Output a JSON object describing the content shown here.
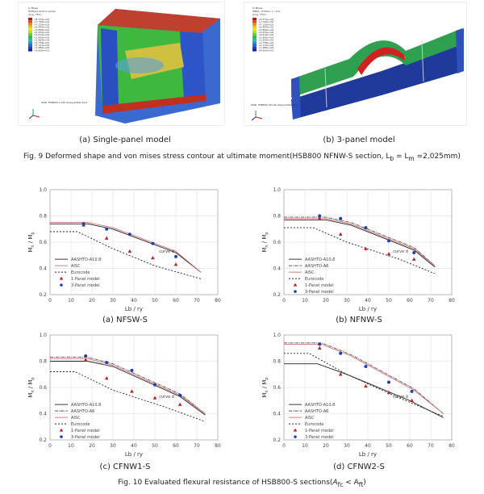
{
  "fig9": {
    "panel_a_caption": "(a) Single-panel model",
    "panel_b_caption": "(b) 3-panel model",
    "caption": "Fig. 9 Deformed shape and von mises stress contour at ultimate moment(HSB800 NFNW-S section, L",
    "caption_eq": " = L",
    "caption_end": " =2,025mm)",
    "sub_b": "b",
    "sub_m": "m",
    "legend_a_title": "S, Mises",
    "legend_a_sub": "Multiple section points",
    "legend_a_sub2": "(Avg: 75%)",
    "legend_b_title": "S, Mises",
    "legend_b_sub": "SNEG, (fraction = -1.0)",
    "legend_b_sub2": "(Avg: 75%)",
    "legend_values": [
      "+8.372e+02",
      "+7.746e+02",
      "+7.120e+02",
      "+6.494e+02",
      "+5.868e+02",
      "+5.242e+02",
      "+4.616e+02",
      "+3.990e+02",
      "+3.364e+02",
      "+2.738e+02",
      "+2.112e+02",
      "+1.486e+02",
      "+8.600e+01"
    ],
    "legend_colors": [
      "#d01010",
      "#e84a10",
      "#f08a10",
      "#f0c010",
      "#e8e810",
      "#b0e020",
      "#60d030",
      "#20c050",
      "#20c0a0",
      "#20a0d0",
      "#2070e0",
      "#2040d0",
      "#1020b0"
    ]
  },
  "fig10": {
    "caption": "Fig. 10 Evaluated flexural resistance of HSB800-S sections(",
    "caption_math": "A",
    "sub_fc": "fc",
    "lt": " < A",
    "sub_ft": "ft",
    "caption_close": ")",
    "y_axis_label": "M",
    "y_axis_sub_n": "n",
    "y_axis_slash": " / M",
    "y_axis_sub_p": "p",
    "x_axis_label": "Lb / ry",
    "x_ticks": [
      "0",
      "10",
      "20",
      "30",
      "40",
      "50",
      "60",
      "70",
      "80"
    ],
    "y_ticks": [
      "0.2",
      "0.4",
      "0.6",
      "0.8",
      "1.0"
    ],
    "curve_label": "curve d"
  },
  "chart_data": [
    {
      "type": "line",
      "panel": "(a) NFSW-S",
      "xlabel": "Lb / ry",
      "ylabel": "Mn / Mp",
      "xlim": [
        0,
        80
      ],
      "ylim": [
        0.2,
        1.0
      ],
      "legend": [
        "AASHTO-A10.8",
        "AISC",
        "Eurocode",
        "1-Panel model",
        "3-Panel model"
      ],
      "series": [
        {
          "name": "AASHTO-A10.8",
          "x": [
            0,
            18,
            30,
            60,
            72
          ],
          "y": [
            0.74,
            0.74,
            0.7,
            0.52,
            0.37
          ],
          "color": "#222222",
          "dash": ""
        },
        {
          "name": "AISC",
          "x": [
            0,
            18,
            30,
            60,
            72
          ],
          "y": [
            0.75,
            0.75,
            0.71,
            0.53,
            0.37
          ],
          "color": "#d07070",
          "dash": ""
        },
        {
          "name": "Eurocode",
          "x": [
            0,
            13,
            30,
            50,
            72
          ],
          "y": [
            0.68,
            0.68,
            0.55,
            0.42,
            0.32
          ],
          "color": "#222222",
          "dash": "2,2"
        }
      ],
      "points": [
        {
          "name": "1-Panel model",
          "x": [
            16,
            27,
            38,
            49,
            60
          ],
          "y": [
            0.73,
            0.63,
            0.53,
            0.48,
            0.43
          ],
          "color": "#c02020",
          "shape": "triangle"
        },
        {
          "name": "3-Panel model",
          "x": [
            16,
            27,
            38,
            49,
            60
          ],
          "y": [
            0.74,
            0.7,
            0.66,
            0.59,
            0.49
          ],
          "color": "#2040b0",
          "shape": "circle"
        }
      ]
    },
    {
      "type": "line",
      "panel": "(b) NFNW-S",
      "xlabel": "Lb / ry",
      "ylabel": "Mn / Mp",
      "xlim": [
        0,
        80
      ],
      "ylim": [
        0.2,
        1.0
      ],
      "legend": [
        "AASHTO-A10.8",
        "AASHTO-A6",
        "AISC",
        "Eurocode",
        "1-Panel model",
        "3-Panel model"
      ],
      "series": [
        {
          "name": "AASHTO-A10.8",
          "x": [
            0,
            20,
            32,
            62,
            72
          ],
          "y": [
            0.77,
            0.77,
            0.73,
            0.54,
            0.41
          ],
          "color": "#222222",
          "dash": ""
        },
        {
          "name": "AASHTO-A6",
          "x": [
            0,
            20,
            32,
            62,
            72
          ],
          "y": [
            0.79,
            0.79,
            0.75,
            0.56,
            0.42
          ],
          "color": "#555555",
          "dash": "4,1,1,1"
        },
        {
          "name": "AISC",
          "x": [
            0,
            20,
            32,
            62,
            72
          ],
          "y": [
            0.78,
            0.78,
            0.74,
            0.55,
            0.42
          ],
          "color": "#d07070",
          "dash": ""
        },
        {
          "name": "Eurocode",
          "x": [
            0,
            14,
            30,
            55,
            72
          ],
          "y": [
            0.71,
            0.71,
            0.6,
            0.47,
            0.36
          ],
          "color": "#222222",
          "dash": "2,2"
        }
      ],
      "points": [
        {
          "name": "1-Panel model",
          "x": [
            17,
            27,
            39,
            50,
            62
          ],
          "y": [
            0.78,
            0.66,
            0.55,
            0.51,
            0.47
          ],
          "color": "#c02020",
          "shape": "triangle"
        },
        {
          "name": "3-Panel model",
          "x": [
            17,
            27,
            39,
            50,
            62
          ],
          "y": [
            0.8,
            0.78,
            0.71,
            0.61,
            0.52
          ],
          "color": "#2040b0",
          "shape": "circle"
        }
      ]
    },
    {
      "type": "line",
      "panel": "(c) CFNW1-S",
      "xlabel": "Lb / ry",
      "ylabel": "Mn / Mp",
      "xlim": [
        0,
        80
      ],
      "ylim": [
        0.2,
        1.0
      ],
      "legend": [
        "AASHTO-A10.8",
        "AASHTO-A6",
        "AISC",
        "Eurocode",
        "1-Panel model",
        "3-Panel model"
      ],
      "series": [
        {
          "name": "AASHTO-A10.8",
          "x": [
            0,
            18,
            30,
            62,
            74
          ],
          "y": [
            0.8,
            0.8,
            0.76,
            0.53,
            0.39
          ],
          "color": "#222222",
          "dash": ""
        },
        {
          "name": "AASHTO-A6",
          "x": [
            0,
            18,
            30,
            62,
            74
          ],
          "y": [
            0.83,
            0.83,
            0.78,
            0.55,
            0.4
          ],
          "color": "#555555",
          "dash": "4,1,1,1"
        },
        {
          "name": "AISC",
          "x": [
            0,
            18,
            30,
            62,
            74
          ],
          "y": [
            0.82,
            0.82,
            0.77,
            0.54,
            0.4
          ],
          "color": "#d07070",
          "dash": ""
        },
        {
          "name": "Eurocode",
          "x": [
            0,
            12,
            30,
            55,
            74
          ],
          "y": [
            0.72,
            0.72,
            0.58,
            0.45,
            0.34
          ],
          "color": "#222222",
          "dash": "2,2"
        }
      ],
      "points": [
        {
          "name": "1-Panel model",
          "x": [
            17,
            27,
            39,
            50,
            62
          ],
          "y": [
            0.81,
            0.67,
            0.57,
            0.52,
            0.47
          ],
          "color": "#c02020",
          "shape": "triangle"
        },
        {
          "name": "3-Panel model",
          "x": [
            17,
            27,
            39,
            50,
            62
          ],
          "y": [
            0.84,
            0.79,
            0.73,
            0.62,
            0.54
          ],
          "color": "#2040b0",
          "shape": "circle"
        }
      ]
    },
    {
      "type": "line",
      "panel": "(d) CFNW2-S",
      "xlabel": "Lb / ry",
      "ylabel": "Mn / Mp",
      "xlim": [
        0,
        80
      ],
      "ylim": [
        0.2,
        1.0
      ],
      "legend": [
        "AASHTO-A10.8",
        "AASHTO-A6",
        "AISC",
        "Eurocode",
        "1-Panel model",
        "3-Panel model"
      ],
      "series": [
        {
          "name": "AASHTO-A10.8",
          "x": [
            0,
            16,
            30,
            60,
            76
          ],
          "y": [
            0.78,
            0.78,
            0.7,
            0.5,
            0.37
          ],
          "color": "#222222",
          "dash": ""
        },
        {
          "name": "AASHTO-A6",
          "x": [
            0,
            18,
            32,
            62,
            76
          ],
          "y": [
            0.94,
            0.94,
            0.85,
            0.59,
            0.4
          ],
          "color": "#555555",
          "dash": "4,1,1,1"
        },
        {
          "name": "AISC",
          "x": [
            0,
            18,
            32,
            62,
            76
          ],
          "y": [
            0.93,
            0.93,
            0.84,
            0.58,
            0.4
          ],
          "color": "#d07070",
          "dash": ""
        },
        {
          "name": "Eurocode",
          "x": [
            0,
            12,
            30,
            55,
            76
          ],
          "y": [
            0.86,
            0.86,
            0.7,
            0.52,
            0.38
          ],
          "color": "#222222",
          "dash": "2,2"
        }
      ],
      "points": [
        {
          "name": "1-Panel model",
          "x": [
            17,
            27,
            39,
            50,
            61
          ],
          "y": [
            0.9,
            0.7,
            0.61,
            0.56,
            0.5
          ],
          "color": "#c02020",
          "shape": "triangle"
        },
        {
          "name": "3-Panel model",
          "x": [
            17,
            27,
            39,
            50,
            61
          ],
          "y": [
            0.93,
            0.86,
            0.76,
            0.64,
            0.57
          ],
          "color": "#2040b0",
          "shape": "circle"
        }
      ]
    }
  ]
}
